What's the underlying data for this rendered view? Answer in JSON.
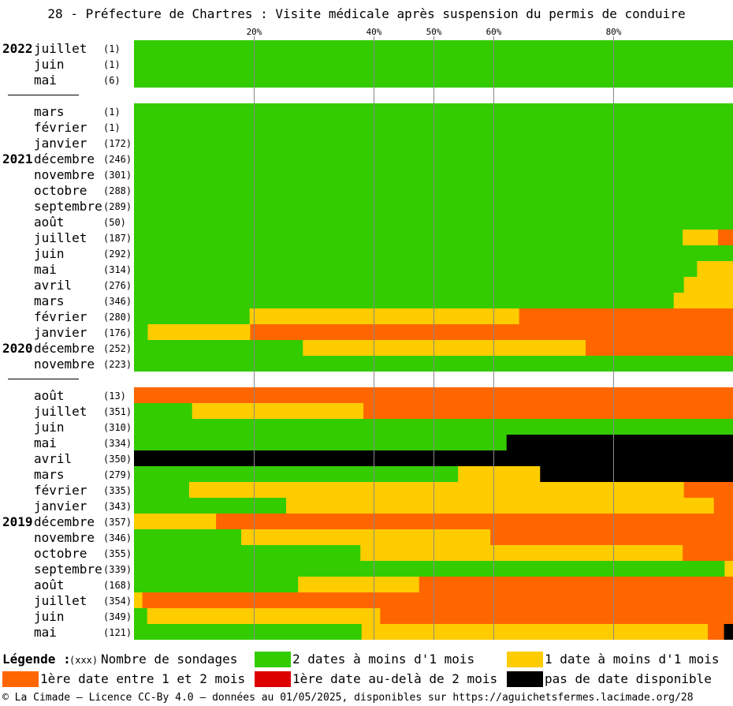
{
  "title": "28 - Préfecture de Chartres : Visite médicale après suspension du permis de conduire",
  "colors": {
    "green": "#33cc00",
    "yellow": "#ffcc00",
    "orange": "#ff6600",
    "red": "#dd0000",
    "black": "#000000",
    "grid": "#888888"
  },
  "chart_data": {
    "type": "bar",
    "orientation": "horizontal-stacked-100",
    "xlim": [
      0,
      100
    ],
    "ticks": [
      {
        "value": 20,
        "label": "20%"
      },
      {
        "value": 40,
        "label": "40%"
      },
      {
        "value": 50,
        "label": "50%"
      },
      {
        "value": 60,
        "label": "60%"
      },
      {
        "value": 80,
        "label": "80%"
      }
    ],
    "series_keys": [
      "green",
      "yellow",
      "orange",
      "red",
      "black"
    ],
    "groups": [
      {
        "rows": [
          {
            "year": "2022",
            "month": "juillet",
            "count": "(1)",
            "values": [
              100,
              0,
              0,
              0,
              0
            ]
          },
          {
            "year": "",
            "month": "juin",
            "count": "(1)",
            "values": [
              100,
              0,
              0,
              0,
              0
            ]
          },
          {
            "year": "",
            "month": "mai",
            "count": "(6)",
            "values": [
              100,
              0,
              0,
              0,
              0
            ]
          }
        ]
      },
      {
        "rows": [
          {
            "year": "",
            "month": "mars",
            "count": "(1)",
            "values": [
              100,
              0,
              0,
              0,
              0
            ]
          },
          {
            "year": "",
            "month": "février",
            "count": "(1)",
            "values": [
              100,
              0,
              0,
              0,
              0
            ]
          },
          {
            "year": "",
            "month": "janvier",
            "count": "(172)",
            "values": [
              100,
              0,
              0,
              0,
              0
            ]
          },
          {
            "year": "2021",
            "month": "décembre",
            "count": "(246)",
            "values": [
              100,
              0,
              0,
              0,
              0
            ]
          },
          {
            "year": "",
            "month": "novembre",
            "count": "(301)",
            "values": [
              100,
              0,
              0,
              0,
              0
            ]
          },
          {
            "year": "",
            "month": "octobre",
            "count": "(288)",
            "values": [
              100,
              0,
              0,
              0,
              0
            ]
          },
          {
            "year": "",
            "month": "septembre",
            "count": "(289)",
            "values": [
              100,
              0,
              0,
              0,
              0
            ]
          },
          {
            "year": "",
            "month": "août",
            "count": "(50)",
            "values": [
              100,
              0,
              0,
              0,
              0
            ]
          },
          {
            "year": "",
            "month": "juillet",
            "count": "(187)",
            "values": [
              91.6,
              5.9,
              2.5,
              0,
              0
            ]
          },
          {
            "year": "",
            "month": "juin",
            "count": "(292)",
            "values": [
              100,
              0,
              0,
              0,
              0
            ]
          },
          {
            "year": "",
            "month": "mai",
            "count": "(314)",
            "values": [
              94.0,
              6.0,
              0,
              0,
              0
            ]
          },
          {
            "year": "",
            "month": "avril",
            "count": "(276)",
            "values": [
              91.8,
              8.2,
              0,
              0,
              0
            ]
          },
          {
            "year": "",
            "month": "mars",
            "count": "(346)",
            "values": [
              90.1,
              9.9,
              0,
              0,
              0
            ]
          },
          {
            "year": "",
            "month": "février",
            "count": "(280)",
            "values": [
              19.3,
              45.0,
              35.7,
              0,
              0
            ]
          },
          {
            "year": "",
            "month": "janvier",
            "count": "(176)",
            "values": [
              2.3,
              17.1,
              80.6,
              0,
              0
            ]
          },
          {
            "year": "2020",
            "month": "décembre",
            "count": "(252)",
            "values": [
              28.2,
              47.2,
              24.6,
              0,
              0
            ]
          },
          {
            "year": "",
            "month": "novembre",
            "count": "(223)",
            "values": [
              100,
              0,
              0,
              0,
              0
            ]
          }
        ]
      },
      {
        "rows": [
          {
            "year": "",
            "month": "août",
            "count": "(13)",
            "values": [
              0,
              0,
              100,
              0,
              0
            ]
          },
          {
            "year": "",
            "month": "juillet",
            "count": "(351)",
            "values": [
              9.7,
              28.6,
              61.7,
              0,
              0
            ]
          },
          {
            "year": "",
            "month": "juin",
            "count": "(310)",
            "values": [
              100,
              0,
              0,
              0,
              0
            ]
          },
          {
            "year": "",
            "month": "mai",
            "count": "(334)",
            "values": [
              62.2,
              0,
              0,
              0,
              37.8
            ]
          },
          {
            "year": "",
            "month": "avril",
            "count": "(350)",
            "values": [
              0,
              0,
              0,
              0,
              100
            ]
          },
          {
            "year": "",
            "month": "mars",
            "count": "(279)",
            "values": [
              54.1,
              13.7,
              0,
              0,
              32.2
            ]
          },
          {
            "year": "",
            "month": "février",
            "count": "(335)",
            "values": [
              9.2,
              82.6,
              8.2,
              0,
              0
            ]
          },
          {
            "year": "",
            "month": "janvier",
            "count": "(343)",
            "values": [
              25.4,
              71.4,
              3.2,
              0,
              0
            ]
          },
          {
            "year": "2019",
            "month": "décembre",
            "count": "(357)",
            "values": [
              0,
              13.7,
              86.3,
              0,
              0
            ]
          },
          {
            "year": "",
            "month": "novembre",
            "count": "(346)",
            "values": [
              17.9,
              41.6,
              40.5,
              0,
              0
            ]
          },
          {
            "year": "",
            "month": "octobre",
            "count": "(355)",
            "values": [
              37.8,
              53.8,
              8.4,
              0,
              0
            ]
          },
          {
            "year": "",
            "month": "septembre",
            "count": "(339)",
            "values": [
              98.6,
              1.4,
              0,
              0,
              0
            ]
          },
          {
            "year": "",
            "month": "août",
            "count": "(168)",
            "values": [
              27.4,
              20.2,
              52.4,
              0,
              0
            ]
          },
          {
            "year": "",
            "month": "juillet",
            "count": "(354)",
            "values": [
              0,
              1.4,
              98.6,
              0,
              0
            ]
          },
          {
            "year": "",
            "month": "juin",
            "count": "(349)",
            "values": [
              2.2,
              38.9,
              58.9,
              0,
              0
            ]
          },
          {
            "year": "",
            "month": "mai",
            "count": "(121)",
            "values": [
              38.0,
              57.8,
              2.7,
              0,
              1.5
            ]
          }
        ]
      }
    ]
  },
  "legend": {
    "title": "Légende :",
    "count_key": "(xxx)",
    "count_label": "Nombre de sondages",
    "items": [
      {
        "key": "green",
        "label": "2 dates à moins d'1 mois"
      },
      {
        "key": "yellow",
        "label": "1 date à moins d'1 mois"
      },
      {
        "key": "orange",
        "label": "1ère date entre 1 et 2 mois"
      },
      {
        "key": "red",
        "label": "1ère date au-delà de 2 mois"
      },
      {
        "key": "black",
        "label": "pas de date disponible"
      }
    ]
  },
  "footer": "© La Cimade – Licence CC-By 4.0 – données au 01/05/2025, disponibles sur https://aguichetsfermes.lacimade.org/28"
}
